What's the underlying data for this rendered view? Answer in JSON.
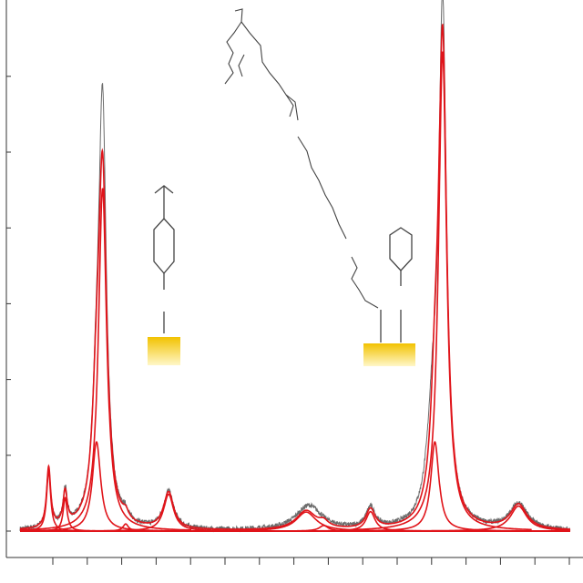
{
  "chart_data": {
    "type": "line",
    "title": "",
    "xlabel": "",
    "ylabel": "",
    "xlim": [
      0,
      100
    ],
    "ylim": [
      0,
      100
    ],
    "grid": false,
    "legend": "none",
    "x_ticks_count": 16,
    "y_ticks_count": 7,
    "colors": {
      "measured": "#6b6b6b",
      "fit": "#e0141a",
      "axis": "#333333",
      "molecule": "#444444",
      "surface_top": "#f2c200",
      "surface_bottom": "#fff7c8"
    },
    "fit_components": [
      {
        "center": 5.2,
        "height": 15.2,
        "width": 0.45
      },
      {
        "center": 8.2,
        "height": 8.4,
        "width": 0.45
      },
      {
        "center": 13.9,
        "height": 22.5,
        "width": 0.9
      },
      {
        "center": 15.0,
        "height": 86.5,
        "width": 0.9
      },
      {
        "center": 19.2,
        "height": 1.8,
        "width": 0.6
      },
      {
        "center": 27.0,
        "height": 9.3,
        "width": 1.1
      },
      {
        "center": 52.0,
        "height": 4.8,
        "width": 2.2
      },
      {
        "center": 55.2,
        "height": 1.4,
        "width": 1.0
      },
      {
        "center": 63.7,
        "height": 4.9,
        "width": 1.0
      },
      {
        "center": 75.4,
        "height": 22.5,
        "width": 0.9
      },
      {
        "center": 76.8,
        "height": 121.0,
        "width": 0.9
      },
      {
        "center": 90.6,
        "height": 6.3,
        "width": 1.8
      }
    ],
    "measured_peaks": [
      {
        "center": 5.2,
        "height": 15.0,
        "width": 0.45
      },
      {
        "center": 8.2,
        "height": 9.0,
        "width": 0.45
      },
      {
        "center": 13.9,
        "height": 22.0,
        "width": 0.9
      },
      {
        "center": 15.0,
        "height": 103.5,
        "width": 0.85
      },
      {
        "center": 19.2,
        "height": 1.9,
        "width": 0.6
      },
      {
        "center": 27.0,
        "height": 9.5,
        "width": 1.1
      },
      {
        "center": 52.5,
        "height": 6.2,
        "width": 2.8
      },
      {
        "center": 63.7,
        "height": 5.2,
        "width": 1.0
      },
      {
        "center": 75.0,
        "height": 23.0,
        "width": 1.2
      },
      {
        "center": 76.8,
        "height": 129.0,
        "width": 0.85
      },
      {
        "center": 90.6,
        "height": 6.6,
        "width": 1.9
      }
    ]
  },
  "decor": {
    "left_molecule_icon": "phenyl-vinyl-molecule-icon",
    "center_molecule_icon": "long-chain-ester-molecule-icon",
    "right_molecule_icon": "phenyl-molecule-icon",
    "left_surface_icon": "gold-substrate-icon",
    "right_surface_icon": "gold-substrate-icon"
  }
}
